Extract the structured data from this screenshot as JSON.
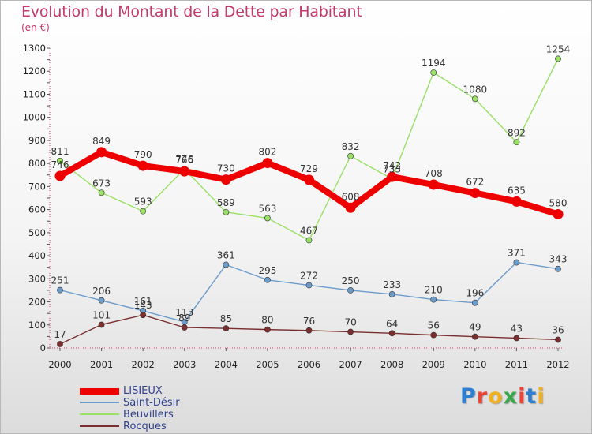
{
  "chart_data": {
    "type": "line",
    "title": "Evolution du Montant de la Dette par Habitant",
    "subtitle": "(en €)",
    "x": [
      "2000",
      "2001",
      "2002",
      "2003",
      "2004",
      "2005",
      "2006",
      "2007",
      "2008",
      "2009",
      "2010",
      "2011",
      "2012"
    ],
    "ylim": [
      0,
      1300
    ],
    "yticks": [
      0,
      100,
      200,
      300,
      400,
      500,
      600,
      700,
      800,
      900,
      1000,
      1100,
      1200,
      1300
    ],
    "grid": false,
    "legend_position": "bottom-left",
    "series": [
      {
        "name": "LISIEUX",
        "color": "#ee0000",
        "values": [
          746,
          849,
          790,
          766,
          730,
          802,
          729,
          608,
          742,
          708,
          672,
          635,
          580
        ]
      },
      {
        "name": "Saint-Désir",
        "color": "#6c9ccc",
        "values": [
          251,
          206,
          161,
          113,
          361,
          295,
          272,
          250,
          233,
          210,
          196,
          371,
          343
        ]
      },
      {
        "name": "Beuvillers",
        "color": "#99e066",
        "values": [
          811,
          673,
          593,
          776,
          589,
          563,
          467,
          832,
          733,
          1194,
          1080,
          892,
          1254
        ]
      },
      {
        "name": "Rocques",
        "color": "#7a2e2e",
        "values": [
          17,
          101,
          143,
          89,
          85,
          80,
          76,
          70,
          64,
          56,
          49,
          43,
          36
        ]
      }
    ]
  },
  "brand": {
    "letters": [
      {
        "char": "P",
        "color": "#2f7fd0"
      },
      {
        "char": "r",
        "color": "#e8443a"
      },
      {
        "char": "o",
        "color": "#f0b020"
      },
      {
        "char": "x",
        "color": "#3aa84a"
      },
      {
        "char": "i",
        "color": "#e8443a"
      },
      {
        "char": "t",
        "color": "#2f7fd0"
      },
      {
        "char": "i",
        "color": "#f0b020"
      }
    ]
  }
}
